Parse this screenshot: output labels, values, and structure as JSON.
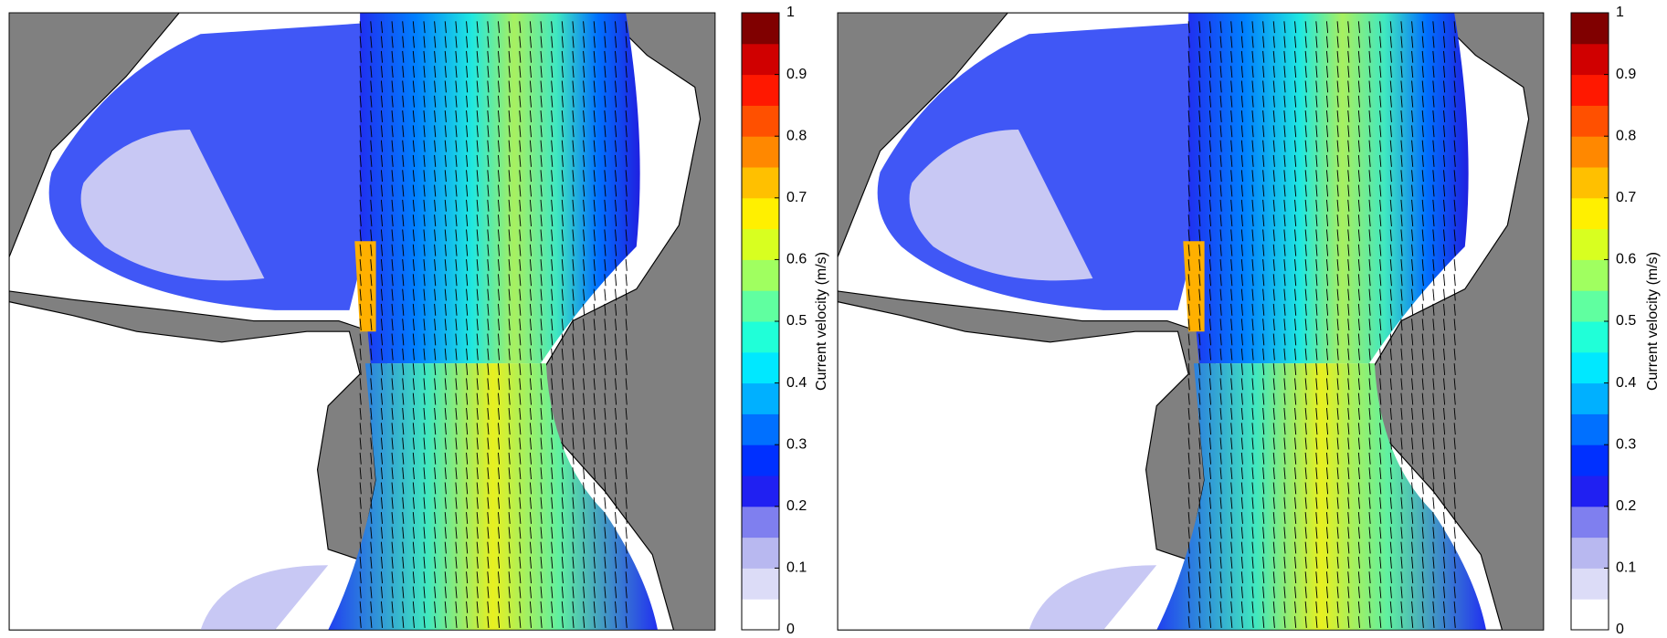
{
  "chart_data": [
    {
      "type": "heatmap",
      "colorbar_label": "Current velocity (m/s)",
      "colorbar_lim": [
        0,
        1
      ],
      "colorbar_ticks": [
        0,
        0.1,
        0.2,
        0.3,
        0.4,
        0.5,
        0.6,
        0.7,
        0.8,
        0.9,
        1
      ],
      "colormap": [
        "#ffffff",
        "#dcdcf7",
        "#b8b8f0",
        "#7f7fef",
        "#2020f2",
        "#0030ff",
        "#0070ff",
        "#00b0ff",
        "#00e8ff",
        "#20ffd8",
        "#60ffa0",
        "#a0ff60",
        "#d8ff20",
        "#fff000",
        "#ffc000",
        "#ff8800",
        "#ff5000",
        "#ff1800",
        "#d00000",
        "#800000"
      ]
    },
    {
      "type": "heatmap",
      "colorbar_label": "Current velocity (m/s)",
      "colorbar_lim": [
        0,
        1
      ],
      "colorbar_ticks": [
        0,
        0.1,
        0.2,
        0.3,
        0.4,
        0.5,
        0.6,
        0.7,
        0.8,
        0.9,
        1
      ],
      "colormap": [
        "#ffffff",
        "#dcdcf7",
        "#b8b8f0",
        "#7f7fef",
        "#2020f2",
        "#0030ff",
        "#0070ff",
        "#00b0ff",
        "#00e8ff",
        "#20ffd8",
        "#60ffa0",
        "#a0ff60",
        "#d8ff20",
        "#fff000",
        "#ffc000",
        "#ff8800",
        "#ff5000",
        "#ff1800",
        "#d00000",
        "#800000"
      ]
    }
  ]
}
